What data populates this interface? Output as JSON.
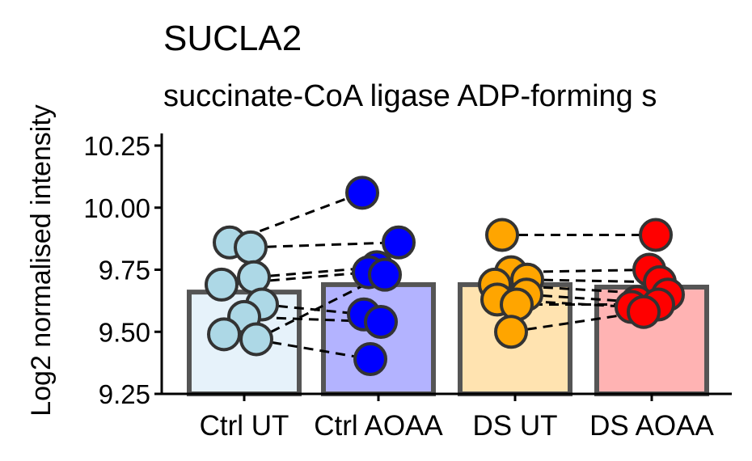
{
  "chart_data": {
    "type": "bar",
    "title": "SUCLA2",
    "subtitle": "succinate-CoA ligase ADP-forming s",
    "xlabel": "",
    "ylabel": "Log2 normalised intensity",
    "ylim": [
      9.25,
      10.3
    ],
    "yticks": [
      "9.25",
      "9.50",
      "9.75",
      "10.00",
      "10.25"
    ],
    "categories": [
      "Ctrl UT",
      "Ctrl AOAA",
      "DS UT",
      "DS AOAA"
    ],
    "values": [
      9.66,
      9.69,
      9.69,
      9.68
    ],
    "bar_colors": [
      "#e6f2fa",
      "#b3b3ff",
      "#ffe3b0",
      "#ffb3b3"
    ],
    "point_colors": [
      "#add8e6",
      "#0000ff",
      "#ffa500",
      "#ff0000"
    ],
    "points": [
      [
        9.86,
        9.84,
        9.72,
        9.69,
        9.61,
        9.56,
        9.49,
        9.47
      ],
      [
        10.06,
        9.86,
        9.76,
        9.74,
        9.57,
        9.54,
        9.39,
        9.73
      ],
      [
        9.89,
        9.74,
        9.71,
        9.69,
        9.65,
        9.63,
        9.61,
        9.5
      ],
      [
        9.89,
        9.75,
        9.7,
        9.65,
        9.62,
        9.6,
        9.61,
        9.58
      ]
    ],
    "pairs": [
      {
        "from": 0,
        "to": 1
      },
      {
        "from": 2,
        "to": 3
      }
    ],
    "grid": false,
    "legend": "none"
  }
}
